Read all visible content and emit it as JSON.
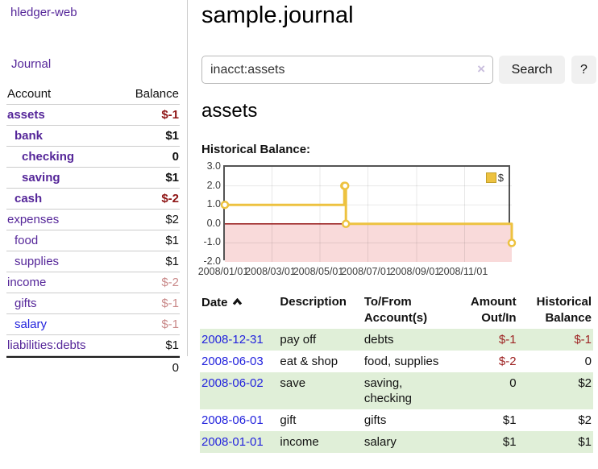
{
  "app": {
    "brand": "hledger-web"
  },
  "nav": {
    "journal": "Journal"
  },
  "sidebar": {
    "account_header": "Account",
    "balance_header": "Balance",
    "accounts": [
      {
        "name": "assets",
        "level": 1,
        "emph": true,
        "tone": "purple",
        "balance": "$-1",
        "balance_tone": "neg-strong"
      },
      {
        "name": "bank",
        "level": 2,
        "emph": true,
        "tone": "purple",
        "balance": "$1",
        "balance_tone": "plain"
      },
      {
        "name": "checking",
        "level": 3,
        "emph": true,
        "tone": "purple",
        "balance": "0",
        "balance_tone": "plain"
      },
      {
        "name": "saving",
        "level": 3,
        "emph": true,
        "tone": "purple",
        "balance": "$1",
        "balance_tone": "plain"
      },
      {
        "name": "cash",
        "level": 2,
        "emph": true,
        "tone": "purple",
        "balance": "$-2",
        "balance_tone": "neg-strong"
      },
      {
        "name": "expenses",
        "level": 1,
        "emph": false,
        "tone": "purple",
        "balance": "$2",
        "balance_tone": "plain"
      },
      {
        "name": "food",
        "level": 2,
        "emph": false,
        "tone": "purple",
        "balance": "$1",
        "balance_tone": "plain"
      },
      {
        "name": "supplies",
        "level": 2,
        "emph": false,
        "tone": "purple",
        "balance": "$1",
        "balance_tone": "plain"
      },
      {
        "name": "income",
        "level": 1,
        "emph": false,
        "tone": "purple",
        "balance": "$-2",
        "balance_tone": "neg-soft"
      },
      {
        "name": "gifts",
        "level": 2,
        "emph": false,
        "tone": "purple",
        "balance": "$-1",
        "balance_tone": "neg-soft"
      },
      {
        "name": "salary",
        "level": 2,
        "emph": false,
        "tone": "blue",
        "balance": "$-1",
        "balance_tone": "neg-soft"
      },
      {
        "name": "liabilities:debts",
        "level": 1,
        "emph": false,
        "tone": "purple",
        "balance": "$1",
        "balance_tone": "plain"
      }
    ],
    "total": "0"
  },
  "main": {
    "title": "sample.journal",
    "search": {
      "value": "inacct:assets",
      "clear_icon": "×",
      "search_button": "Search",
      "help_button": "?"
    },
    "account_heading": "assets",
    "section_label": "Historical Balance:"
  },
  "chart_data": {
    "type": "line",
    "title": "Historical Balance",
    "step": true,
    "x_range": [
      "2008-01-01",
      "2008-12-31"
    ],
    "ylim": [
      -2,
      3
    ],
    "yticks": [
      {
        "label": "3.0",
        "value": 3
      },
      {
        "label": "2.0",
        "value": 2
      },
      {
        "label": "1.0",
        "value": 1
      },
      {
        "label": "0.0",
        "value": 0
      },
      {
        "label": "-1.0",
        "value": -1
      },
      {
        "label": "-2.0",
        "value": -2
      }
    ],
    "xticks": [
      {
        "label": "2008/01/01",
        "date": "2008-01-01"
      },
      {
        "label": "2008/03/01",
        "date": "2008-03-01"
      },
      {
        "label": "2008/05/01",
        "date": "2008-05-01"
      },
      {
        "label": "2008/07/01",
        "date": "2008-07-01"
      },
      {
        "label": "2008/09/01",
        "date": "2008-09-01"
      },
      {
        "label": "2008/11/01",
        "date": "2008-11-01"
      }
    ],
    "series": [
      {
        "name": "$",
        "color": "#EDC240",
        "points": [
          [
            "2008-01-01",
            1
          ],
          [
            "2008-06-01",
            2
          ],
          [
            "2008-06-02",
            2
          ],
          [
            "2008-06-03",
            0
          ],
          [
            "2008-12-31",
            -1
          ]
        ]
      }
    ],
    "legend": [
      {
        "label": "$",
        "color": "#EDC240"
      }
    ],
    "legend_position": "top-right",
    "grid": true,
    "negative_region_fill": "#f9dada",
    "zero_line_color": "#8b0000"
  },
  "table": {
    "headers": {
      "date": "Date",
      "description": "Description",
      "accounts_l1": "To/From",
      "accounts_l2": "Account(s)",
      "amount_l1": "Amount",
      "amount_l2": "Out/In",
      "balance_l1": "Historical",
      "balance_l2": "Balance"
    },
    "rows": [
      {
        "date": "2008-12-31",
        "description": "pay off",
        "accounts": "debts",
        "amount": "$-1",
        "amount_tone": "neg",
        "balance": "$-1",
        "balance_tone": "neg",
        "shaded": true
      },
      {
        "date": "2008-06-03",
        "description": "eat & shop",
        "accounts": "food, supplies",
        "amount": "$-2",
        "amount_tone": "neg",
        "balance": "0",
        "balance_tone": "plain",
        "shaded": false
      },
      {
        "date": "2008-06-02",
        "description": "save",
        "accounts": "saving, checking",
        "amount": "0",
        "amount_tone": "plain",
        "balance": "$2",
        "balance_tone": "plain",
        "shaded": true
      },
      {
        "date": "2008-06-01",
        "description": "gift",
        "accounts": "gifts",
        "amount": "$1",
        "amount_tone": "plain",
        "balance": "$2",
        "balance_tone": "plain",
        "shaded": false
      },
      {
        "date": "2008-01-01",
        "description": "income",
        "accounts": "salary",
        "amount": "$1",
        "amount_tone": "plain",
        "balance": "$1",
        "balance_tone": "plain",
        "shaded": true
      }
    ]
  }
}
